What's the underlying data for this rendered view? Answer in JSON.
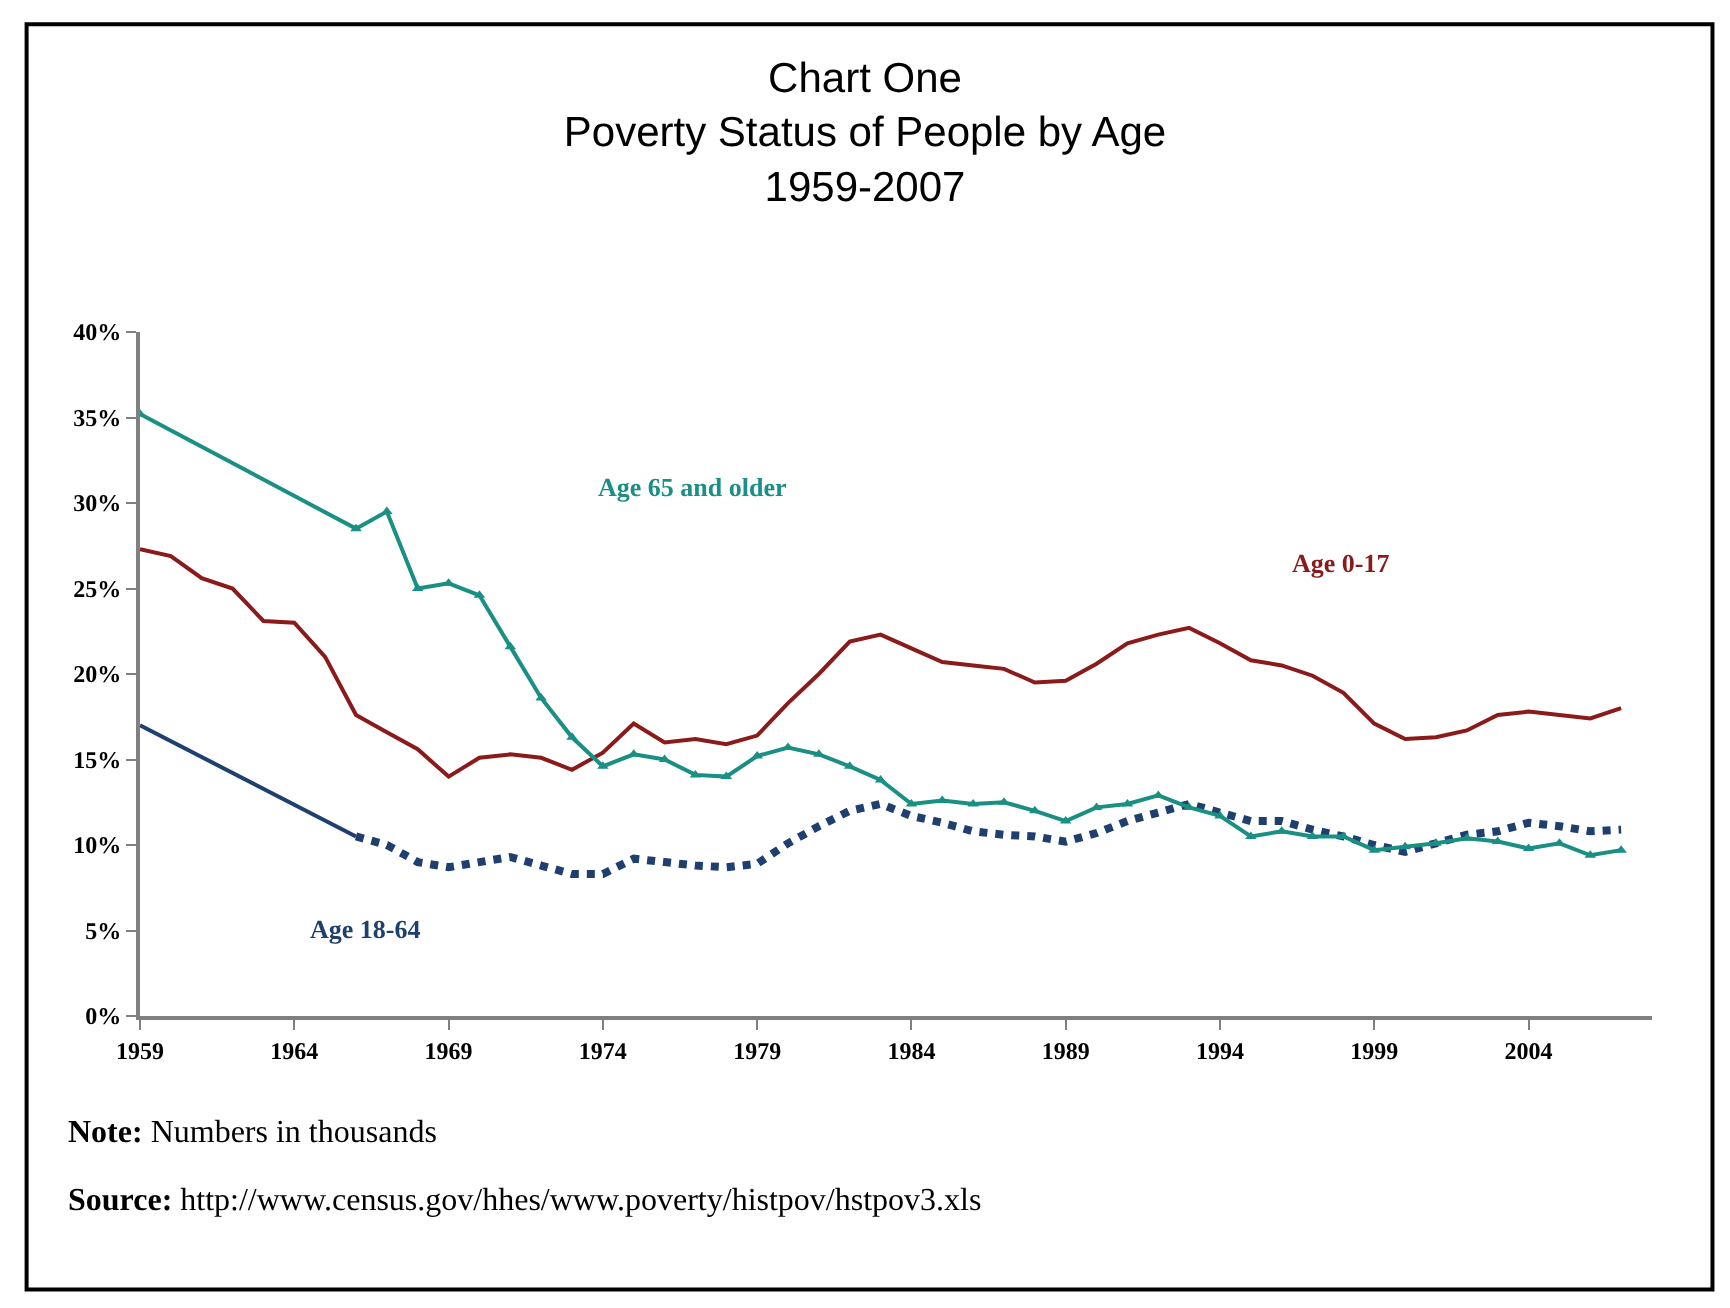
{
  "chart_data": {
    "type": "line",
    "title": "Chart One\nPoverty Status of People by Age\n1959-2007",
    "series": [
      {
        "name": "Age 0-17",
        "color": "#8b1a1a",
        "marker": "none",
        "line_style": "solid",
        "x": [
          1959,
          1960,
          1961,
          1962,
          1963,
          1964,
          1965,
          1966,
          1967,
          1968,
          1969,
          1970,
          1971,
          1972,
          1973,
          1974,
          1975,
          1976,
          1977,
          1978,
          1979,
          1980,
          1981,
          1982,
          1983,
          1984,
          1985,
          1986,
          1987,
          1988,
          1989,
          1990,
          1991,
          1992,
          1993,
          1994,
          1995,
          1996,
          1997,
          1998,
          1999,
          2000,
          2001,
          2002,
          2003,
          2004,
          2005,
          2006,
          2007
        ],
        "values": [
          27.3,
          26.9,
          25.6,
          25.0,
          23.1,
          23.0,
          21.0,
          17.6,
          16.6,
          15.6,
          14.0,
          15.1,
          15.3,
          15.1,
          14.4,
          15.4,
          17.1,
          16.0,
          16.2,
          15.9,
          16.4,
          18.3,
          20.0,
          21.9,
          22.3,
          21.5,
          20.7,
          20.5,
          20.3,
          19.5,
          19.6,
          20.6,
          21.8,
          22.3,
          22.7,
          21.8,
          20.8,
          20.5,
          19.9,
          18.9,
          17.1,
          16.2,
          16.3,
          16.7,
          17.6,
          17.8,
          17.6,
          17.4,
          18.0
        ]
      },
      {
        "name": "Age 65 and older",
        "color": "#1a8f84",
        "marker": "triangle",
        "line_style": "solid",
        "x": [
          1959,
          1966,
          1967,
          1968,
          1969,
          1970,
          1971,
          1972,
          1973,
          1974,
          1975,
          1976,
          1977,
          1978,
          1979,
          1980,
          1981,
          1982,
          1983,
          1984,
          1985,
          1986,
          1987,
          1988,
          1989,
          1990,
          1991,
          1992,
          1993,
          1994,
          1995,
          1996,
          1997,
          1998,
          1999,
          2000,
          2001,
          2002,
          2003,
          2004,
          2005,
          2006,
          2007
        ],
        "values": [
          35.2,
          28.5,
          29.5,
          25.0,
          25.3,
          24.6,
          21.6,
          18.6,
          16.3,
          14.6,
          15.3,
          15.0,
          14.1,
          14.0,
          15.2,
          15.7,
          15.3,
          14.6,
          13.8,
          12.4,
          12.6,
          12.4,
          12.5,
          12.0,
          11.4,
          12.2,
          12.4,
          12.9,
          12.2,
          11.7,
          10.5,
          10.8,
          10.5,
          10.5,
          9.7,
          9.9,
          10.1,
          10.4,
          10.2,
          9.8,
          10.1,
          9.4,
          9.7
        ]
      },
      {
        "name": "Age 18-64",
        "color": "#1f3f6e",
        "marker": "none",
        "line_style": "dotted",
        "x": [
          1966,
          1967,
          1968,
          1969,
          1970,
          1971,
          1972,
          1973,
          1974,
          1975,
          1976,
          1977,
          1978,
          1979,
          1980,
          1981,
          1982,
          1983,
          1984,
          1985,
          1986,
          1987,
          1988,
          1989,
          1990,
          1991,
          1992,
          1993,
          1994,
          1995,
          1996,
          1997,
          1998,
          1999,
          2000,
          2001,
          2002,
          2003,
          2004,
          2005,
          2006,
          2007
        ],
        "values": [
          10.5,
          10.0,
          9.0,
          8.7,
          9.0,
          9.3,
          8.8,
          8.3,
          8.3,
          9.2,
          9.0,
          8.8,
          8.7,
          8.9,
          10.1,
          11.1,
          12.0,
          12.4,
          11.7,
          11.3,
          10.8,
          10.6,
          10.5,
          10.2,
          10.7,
          11.4,
          11.9,
          12.4,
          11.9,
          11.4,
          11.4,
          10.9,
          10.5,
          10.0,
          9.6,
          10.1,
          10.6,
          10.8,
          11.3,
          11.1,
          10.8,
          10.9
        ]
      },
      {
        "color": "#1f3f6e",
        "marker": "none",
        "line_style": "solid",
        "x": [
          1959,
          1966
        ],
        "values": [
          17.0,
          10.5
        ]
      }
    ],
    "xlim": [
      1959,
      2008
    ],
    "xticks": [
      1959,
      1964,
      1969,
      1974,
      1979,
      1984,
      1989,
      1994,
      1999,
      2004
    ],
    "ylim": [
      0,
      40
    ],
    "yticks": [
      {
        "value": 0,
        "label": "0%"
      },
      {
        "value": 5,
        "label": "5%"
      },
      {
        "value": 10,
        "label": "10%"
      },
      {
        "value": 15,
        "label": "15%"
      },
      {
        "value": 20,
        "label": "20%"
      },
      {
        "value": 25,
        "label": "25%"
      },
      {
        "value": 30,
        "label": "30%"
      },
      {
        "value": 35,
        "label": "35%"
      },
      {
        "value": 40,
        "label": "40%"
      }
    ],
    "legend": false,
    "annotations": [
      "Note: Numbers in thousands",
      "Source: http://www.census.gov/hhes/www.poverty/histpov/hstpov3.xls"
    ]
  }
}
